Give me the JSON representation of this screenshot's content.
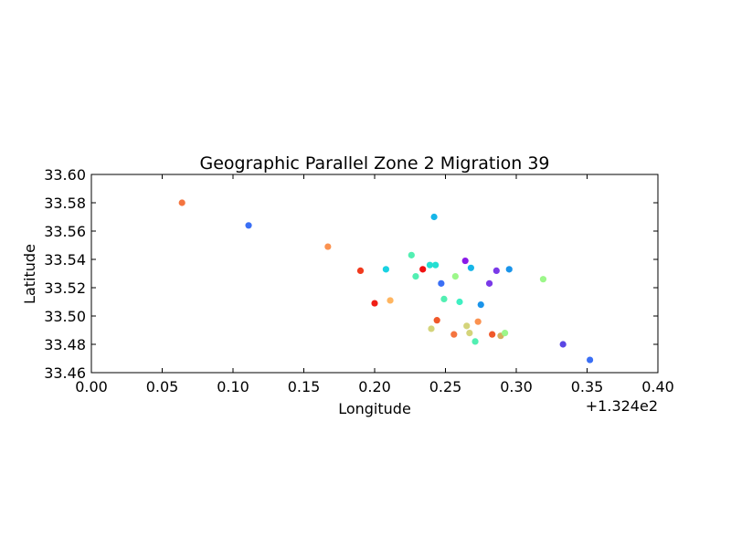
{
  "chart_data": {
    "type": "scatter",
    "title": "Geographic Parallel Zone 2 Migration 39",
    "xlabel": "Longitude",
    "ylabel": "Latitude",
    "x_offset_label": "+1.324e2",
    "xlim": [
      0.0,
      0.4
    ],
    "ylim": [
      33.46,
      33.6
    ],
    "x_ticks": [
      "0.00",
      "0.05",
      "0.10",
      "0.15",
      "0.20",
      "0.25",
      "0.30",
      "0.35",
      "0.40"
    ],
    "y_ticks": [
      "33.46",
      "33.48",
      "33.50",
      "33.52",
      "33.54",
      "33.56",
      "33.58",
      "33.60"
    ],
    "grid": false,
    "legend": "none",
    "points": [
      {
        "x": 0.064,
        "y": 33.58,
        "color": "#f4743f"
      },
      {
        "x": 0.111,
        "y": 33.564,
        "color": "#3a6ff5"
      },
      {
        "x": 0.167,
        "y": 33.549,
        "color": "#fb9250"
      },
      {
        "x": 0.19,
        "y": 33.532,
        "color": "#f13a1e"
      },
      {
        "x": 0.2,
        "y": 33.509,
        "color": "#f01e16"
      },
      {
        "x": 0.208,
        "y": 33.533,
        "color": "#1ad2e2"
      },
      {
        "x": 0.211,
        "y": 33.511,
        "color": "#ffb560"
      },
      {
        "x": 0.226,
        "y": 33.543,
        "color": "#52efb2"
      },
      {
        "x": 0.229,
        "y": 33.528,
        "color": "#52efb2"
      },
      {
        "x": 0.234,
        "y": 33.533,
        "color": "#f01010"
      },
      {
        "x": 0.239,
        "y": 33.536,
        "color": "#24dfd2"
      },
      {
        "x": 0.24,
        "y": 33.491,
        "color": "#d4d47a"
      },
      {
        "x": 0.242,
        "y": 33.57,
        "color": "#16b6e8"
      },
      {
        "x": 0.243,
        "y": 33.536,
        "color": "#24dfd2"
      },
      {
        "x": 0.244,
        "y": 33.497,
        "color": "#f0582a"
      },
      {
        "x": 0.247,
        "y": 33.523,
        "color": "#3a6ff5"
      },
      {
        "x": 0.249,
        "y": 33.512,
        "color": "#52efb2"
      },
      {
        "x": 0.256,
        "y": 33.487,
        "color": "#f4743f"
      },
      {
        "x": 0.257,
        "y": 33.528,
        "color": "#9cf78a"
      },
      {
        "x": 0.26,
        "y": 33.51,
        "color": "#3ef0c2"
      },
      {
        "x": 0.264,
        "y": 33.539,
        "color": "#8a1ae8"
      },
      {
        "x": 0.265,
        "y": 33.493,
        "color": "#d4d47a"
      },
      {
        "x": 0.267,
        "y": 33.488,
        "color": "#d4d47a"
      },
      {
        "x": 0.268,
        "y": 33.534,
        "color": "#16b6e8"
      },
      {
        "x": 0.271,
        "y": 33.482,
        "color": "#52efb2"
      },
      {
        "x": 0.273,
        "y": 33.496,
        "color": "#fb9250"
      },
      {
        "x": 0.275,
        "y": 33.508,
        "color": "#1a94ea"
      },
      {
        "x": 0.281,
        "y": 33.523,
        "color": "#7a3ae8"
      },
      {
        "x": 0.283,
        "y": 33.487,
        "color": "#f0582a"
      },
      {
        "x": 0.286,
        "y": 33.532,
        "color": "#7a3ae8"
      },
      {
        "x": 0.289,
        "y": 33.486,
        "color": "#d4b05e"
      },
      {
        "x": 0.292,
        "y": 33.488,
        "color": "#9cf78a"
      },
      {
        "x": 0.295,
        "y": 33.533,
        "color": "#1a94ea"
      },
      {
        "x": 0.319,
        "y": 33.526,
        "color": "#9cf78a"
      },
      {
        "x": 0.333,
        "y": 33.48,
        "color": "#5a46e4"
      },
      {
        "x": 0.352,
        "y": 33.469,
        "color": "#3a6ff5"
      }
    ]
  }
}
